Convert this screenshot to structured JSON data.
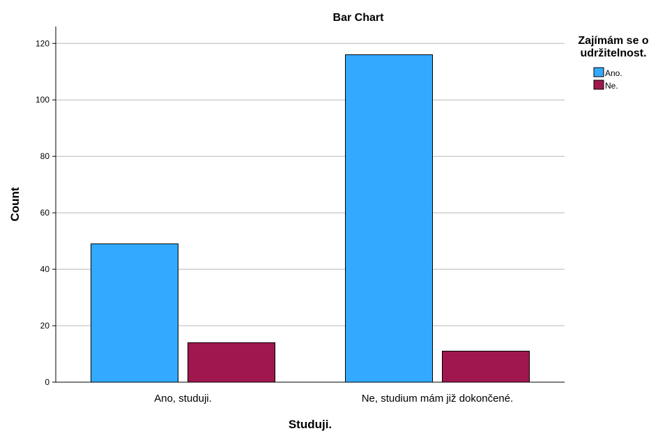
{
  "chart_data": {
    "type": "bar",
    "title": "Bar Chart",
    "xlabel": "Studuji.",
    "ylabel": "Count",
    "categories": [
      "Ano, studuji.",
      "Ne, studium mám již dokončené."
    ],
    "series": [
      {
        "name": "Ano.",
        "values": [
          49,
          116
        ],
        "color": "#33aaff"
      },
      {
        "name": "Ne.",
        "values": [
          14,
          11
        ],
        "color": "#a0174d"
      }
    ],
    "ylim": [
      0,
      126
    ],
    "yticks": [
      "0",
      "20",
      "40",
      "60",
      "80",
      "100",
      "120"
    ],
    "grid": true,
    "legend": {
      "title_lines": [
        "Zajímám se o",
        "udržitelnost."
      ],
      "placement": "top-right"
    }
  }
}
